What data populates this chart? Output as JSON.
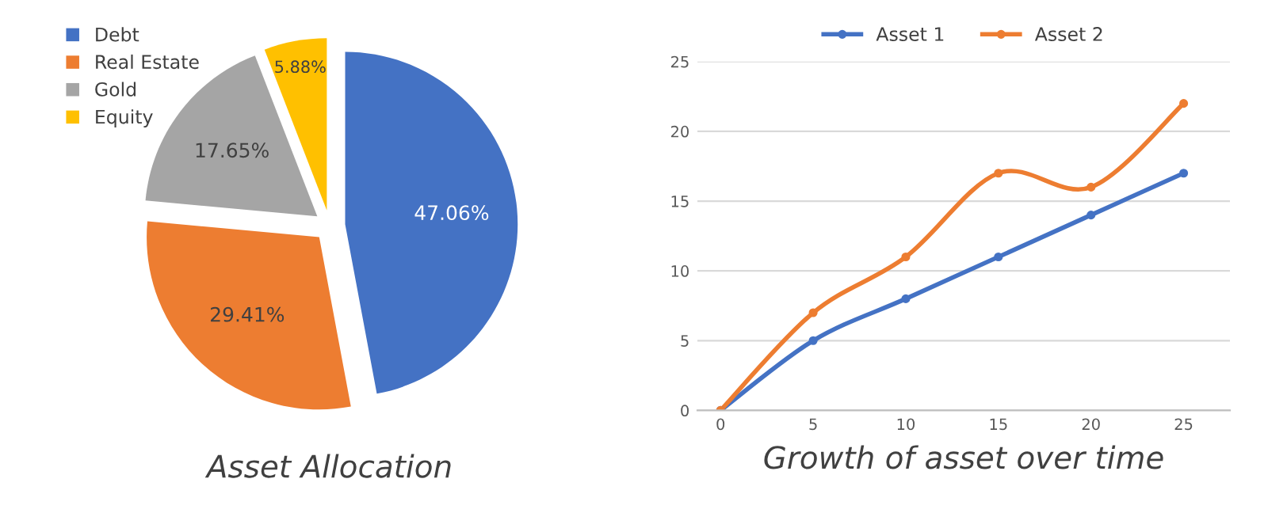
{
  "chart_data": [
    {
      "type": "pie",
      "title": "Asset Allocation",
      "categories": [
        "Debt",
        "Real Estate",
        "Gold",
        "Equity"
      ],
      "values": [
        47.06,
        29.41,
        17.65,
        5.88
      ],
      "colors": [
        "#4472c4",
        "#ed7d31",
        "#a5a5a5",
        "#ffc000"
      ],
      "value_labels": [
        "47.06%",
        "29.41%",
        "17.65%",
        "5.88%"
      ],
      "legend": "top left"
    },
    {
      "type": "line",
      "title": "Growth of asset over time",
      "categories": [
        "0",
        "5",
        "10",
        "15",
        "20",
        "25"
      ],
      "series": [
        {
          "name": "Asset 1",
          "color": "#4472c4",
          "values": [
            0,
            5,
            8,
            11,
            14,
            17
          ]
        },
        {
          "name": "Asset 2",
          "color": "#ed7d31",
          "values": [
            0,
            7,
            11,
            17,
            16,
            22
          ]
        }
      ],
      "ylim": [
        0,
        25
      ],
      "yticks": [
        0,
        5,
        10,
        15,
        20,
        25
      ],
      "grid": "y",
      "legend": "top",
      "marker": "circle",
      "line_style": "solid"
    }
  ]
}
